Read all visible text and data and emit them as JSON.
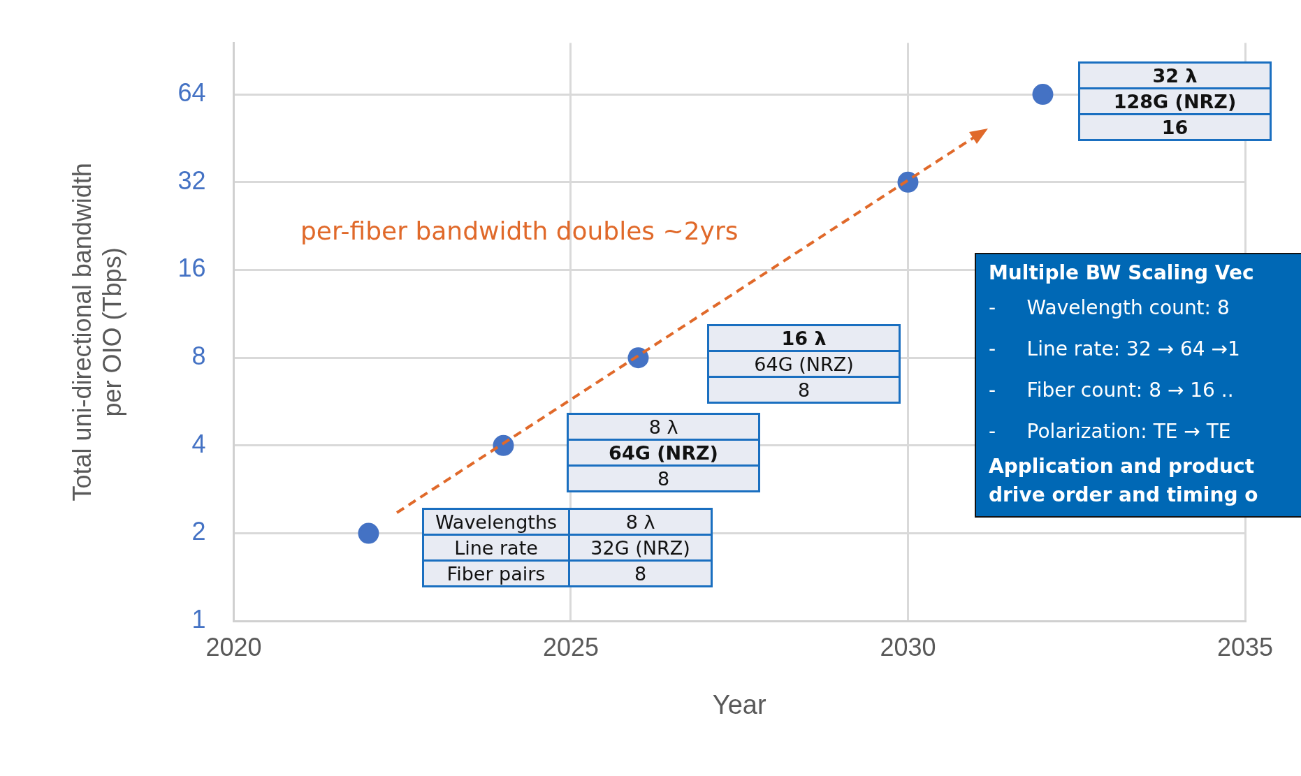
{
  "chart_data": {
    "type": "scatter",
    "xlabel": "Year",
    "ylabel": "Total uni-directional bandwidth per OIO (Tbps)",
    "xlim": [
      2020,
      2035
    ],
    "xticks": [
      2020,
      2025,
      2030,
      2035
    ],
    "ylim": [
      1,
      96
    ],
    "yticks": [
      1,
      2,
      4,
      8,
      16,
      32,
      64
    ],
    "log": "y",
    "grid": true,
    "marker": "circle",
    "series": [
      {
        "x": [
          2022,
          2024,
          2026,
          2030,
          2032
        ],
        "values": [
          2,
          4,
          8,
          32,
          64
        ],
        "color": "#4472c4"
      }
    ],
    "annotations": [
      "per-fiber bandwidth doubles ~2yrs",
      "Wavelengths",
      "8 λ",
      "Line rate",
      "32G (NRZ)",
      "Fiber pairs",
      "8",
      "8 λ",
      "64G (NRZ)",
      "8",
      "16 λ",
      "64G (NRZ)",
      "8",
      "32 λ",
      "128G (NRZ)",
      "16",
      "Multiple BW Scaling Vec",
      "-     Wavelength count: 8",
      "-     Line rate: 32 → 64 →1",
      "-     Fiber count: 8 → 16 ..",
      "-     Polarization: TE → TE",
      "Application and product",
      "drive order and timing o"
    ]
  }
}
